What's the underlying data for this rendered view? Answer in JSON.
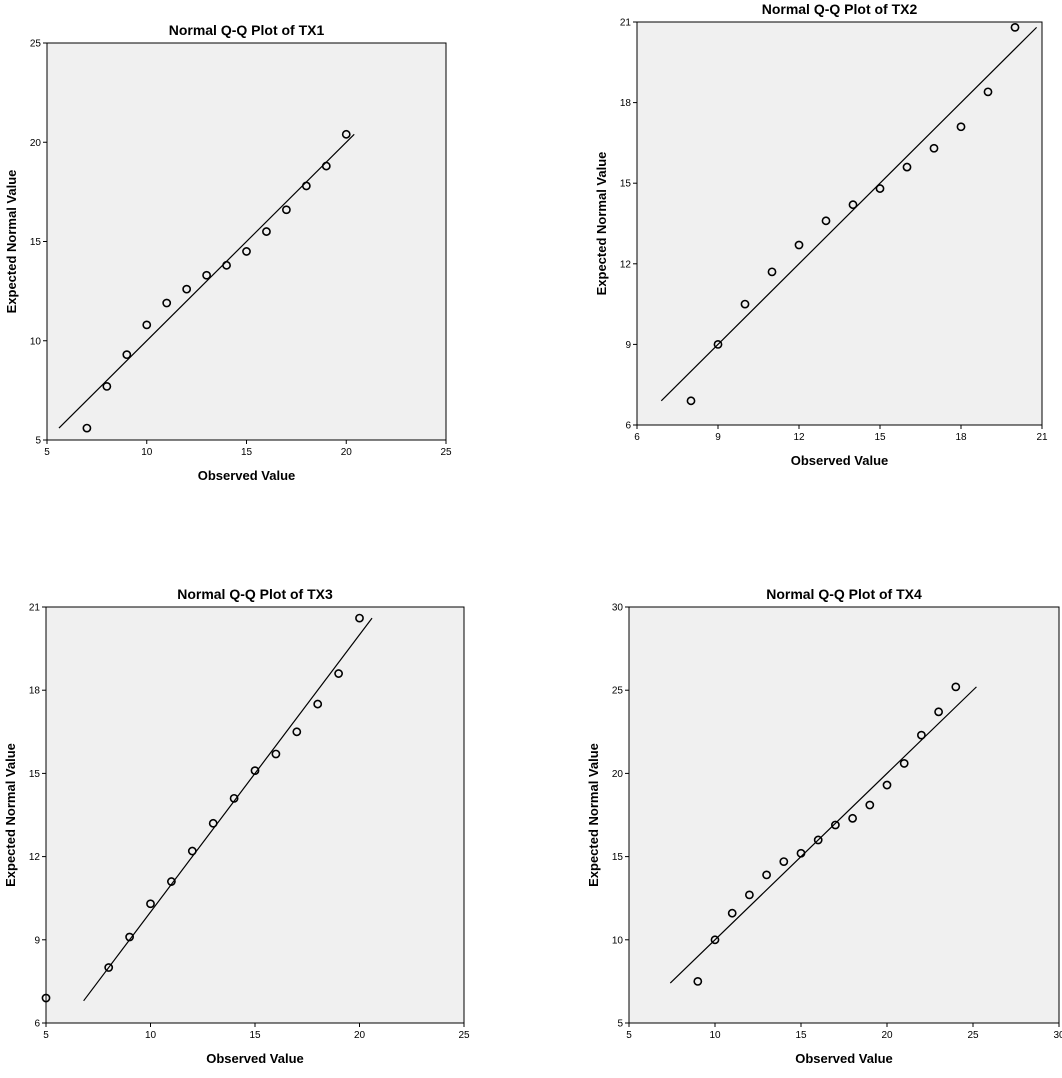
{
  "chart_data": [
    {
      "type": "scatter",
      "title": "Normal Q-Q Plot of TX1",
      "xlabel": "Observed Value",
      "ylabel": "Expected Normal Value",
      "xlim": [
        5,
        25
      ],
      "ylim": [
        5,
        25
      ],
      "xticks": [
        5,
        10,
        15,
        20,
        25
      ],
      "yticks": [
        5,
        10,
        15,
        20,
        25
      ],
      "grid": false,
      "points": [
        [
          7,
          5.6
        ],
        [
          8,
          7.7
        ],
        [
          9,
          9.3
        ],
        [
          10,
          10.8
        ],
        [
          11,
          11.9
        ],
        [
          12,
          12.6
        ],
        [
          13,
          13.3
        ],
        [
          14,
          13.8
        ],
        [
          15,
          14.5
        ],
        [
          16,
          15.5
        ],
        [
          17,
          16.6
        ],
        [
          18,
          17.8
        ],
        [
          19,
          18.8
        ],
        [
          20,
          20.4
        ]
      ],
      "line": [
        [
          5.6,
          5.6
        ],
        [
          20.4,
          20.4
        ]
      ]
    },
    {
      "type": "scatter",
      "title": "Normal Q-Q Plot of TX2",
      "xlabel": "Observed Value",
      "ylabel": "Expected Normal Value",
      "xlim": [
        6,
        21
      ],
      "ylim": [
        6,
        21
      ],
      "xticks": [
        6,
        9,
        12,
        15,
        18,
        21
      ],
      "yticks": [
        6,
        9,
        12,
        15,
        18,
        21
      ],
      "grid": false,
      "points": [
        [
          8,
          6.9
        ],
        [
          9,
          9.0
        ],
        [
          10,
          10.5
        ],
        [
          11,
          11.7
        ],
        [
          12,
          12.7
        ],
        [
          13,
          13.6
        ],
        [
          14,
          14.2
        ],
        [
          15,
          14.8
        ],
        [
          16,
          15.6
        ],
        [
          17,
          16.3
        ],
        [
          18,
          17.1
        ],
        [
          19,
          18.4
        ],
        [
          20,
          20.8
        ]
      ],
      "line": [
        [
          6.9,
          6.9
        ],
        [
          20.8,
          20.8
        ]
      ]
    },
    {
      "type": "scatter",
      "title": "Normal Q-Q Plot of TX3",
      "xlabel": "Observed Value",
      "ylabel": "Expected Normal Value",
      "xlim": [
        5,
        25
      ],
      "ylim": [
        6,
        21
      ],
      "xticks": [
        5,
        10,
        15,
        20,
        25
      ],
      "yticks": [
        6,
        9,
        12,
        15,
        18,
        21
      ],
      "grid": false,
      "points": [
        [
          5,
          6.9
        ],
        [
          8,
          8.0
        ],
        [
          9,
          9.1
        ],
        [
          10,
          10.3
        ],
        [
          11,
          11.1
        ],
        [
          12,
          12.2
        ],
        [
          13,
          13.2
        ],
        [
          14,
          14.1
        ],
        [
          15,
          15.1
        ],
        [
          16,
          15.7
        ],
        [
          17,
          16.5
        ],
        [
          18,
          17.5
        ],
        [
          19,
          18.6
        ],
        [
          20,
          20.6
        ]
      ],
      "line": [
        [
          6.8,
          6.8
        ],
        [
          20.6,
          20.6
        ]
      ]
    },
    {
      "type": "scatter",
      "title": "Normal Q-Q Plot of TX4",
      "xlabel": "Observed Value",
      "ylabel": "Expected Normal Value",
      "xlim": [
        5,
        30
      ],
      "ylim": [
        5,
        30
      ],
      "xticks": [
        5,
        10,
        15,
        20,
        25,
        30
      ],
      "yticks": [
        5,
        10,
        15,
        20,
        25,
        30
      ],
      "grid": false,
      "points": [
        [
          9,
          7.5
        ],
        [
          10,
          10.0
        ],
        [
          11,
          11.6
        ],
        [
          12,
          12.7
        ],
        [
          13,
          13.9
        ],
        [
          14,
          14.7
        ],
        [
          15,
          15.2
        ],
        [
          16,
          16.0
        ],
        [
          17,
          16.9
        ],
        [
          18,
          17.3
        ],
        [
          19,
          18.1
        ],
        [
          20,
          19.3
        ],
        [
          21,
          20.6
        ],
        [
          22,
          22.3
        ],
        [
          23,
          23.7
        ],
        [
          24,
          25.2
        ]
      ],
      "line": [
        [
          7.4,
          7.4
        ],
        [
          25.2,
          25.2
        ]
      ]
    }
  ]
}
